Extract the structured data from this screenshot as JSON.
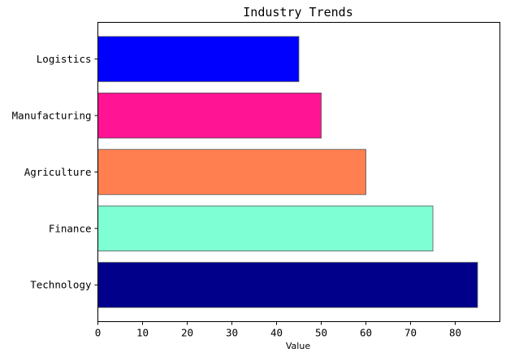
{
  "chart_data": {
    "type": "bar",
    "orientation": "horizontal",
    "title": "Industry Trends",
    "xlabel": "Value",
    "ylabel": "",
    "xlim": [
      0,
      90
    ],
    "xticks": [
      "0",
      "10",
      "20",
      "30",
      "40",
      "50",
      "60",
      "70",
      "80"
    ],
    "categories": [
      "Technology",
      "Finance",
      "Agriculture",
      "Manufacturing",
      "Logistics"
    ],
    "values": [
      85,
      75,
      60,
      50,
      45
    ],
    "colors": [
      "#00008b",
      "#7fffd4",
      "#ff7f50",
      "#ff1493",
      "#0000ff"
    ],
    "grid": false,
    "legend": "none"
  }
}
